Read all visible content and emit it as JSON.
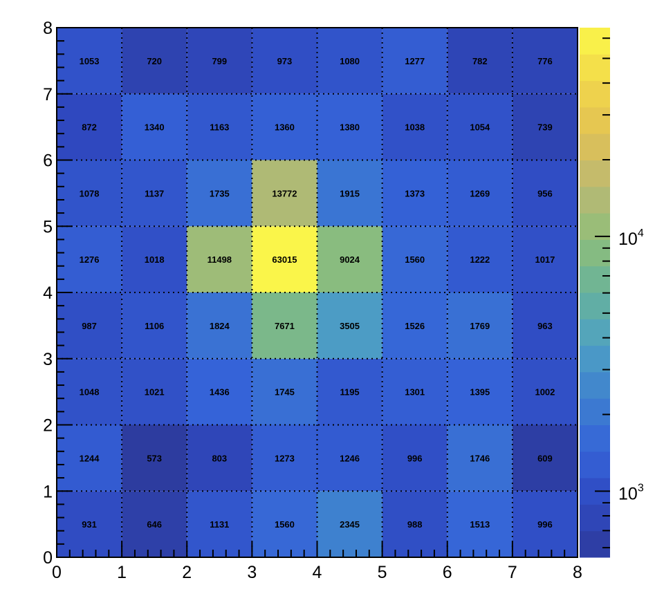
{
  "title": "",
  "chart_data": {
    "type": "heatmap",
    "xlabel": "",
    "ylabel": "",
    "x_range": [
      0,
      8
    ],
    "y_range": [
      0,
      8
    ],
    "x_ticks": [
      "0",
      "1",
      "2",
      "3",
      "4",
      "5",
      "6",
      "7",
      "8"
    ],
    "y_ticks": [
      "0",
      "1",
      "2",
      "3",
      "4",
      "5",
      "6",
      "7",
      "8"
    ],
    "grid": true,
    "color_scale": "log",
    "z_range": [
      550,
      66000
    ],
    "colorbar_labels": [
      {
        "value": 1000,
        "base": "10",
        "exp": "3"
      },
      {
        "value": 10000,
        "base": "10",
        "exp": "4"
      }
    ],
    "palette": [
      "#2d3b9c",
      "#2f49c0",
      "#3563d8",
      "#3e80cf",
      "#4ea0c4",
      "#67b29b",
      "#8fbe7a",
      "#bbb973",
      "#e2c154",
      "#f2d84a",
      "#fbf84a"
    ],
    "rows": [
      [
        931,
        646,
        1131,
        1560,
        2345,
        988,
        1513,
        996
      ],
      [
        1244,
        573,
        803,
        1273,
        1246,
        996,
        1746,
        609
      ],
      [
        1048,
        1021,
        1436,
        1745,
        1195,
        1301,
        1395,
        1002
      ],
      [
        987,
        1106,
        1824,
        7671,
        3505,
        1526,
        1769,
        963
      ],
      [
        1276,
        1018,
        11498,
        63015,
        9024,
        1560,
        1222,
        1017
      ],
      [
        1078,
        1137,
        1735,
        13772,
        1915,
        1373,
        1269,
        956
      ],
      [
        872,
        1340,
        1163,
        1360,
        1380,
        1038,
        1054,
        739
      ],
      [
        1053,
        720,
        799,
        973,
        1080,
        1277,
        782,
        776
      ]
    ]
  }
}
